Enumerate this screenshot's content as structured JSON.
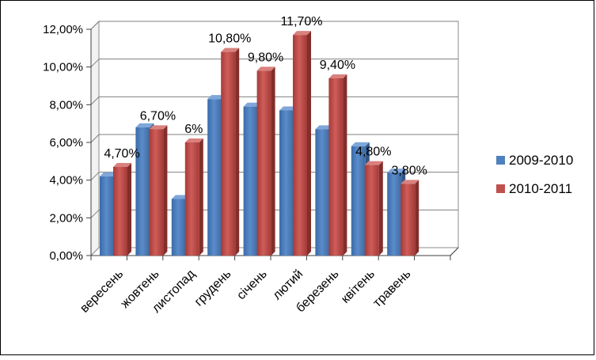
{
  "chart_data": {
    "type": "bar",
    "categories": [
      "вересень",
      "жовтень",
      "листопад",
      "грудень",
      "січень",
      "лютий",
      "березень",
      "квітень",
      "травень"
    ],
    "series": [
      {
        "name": "2009-2010",
        "values": [
          4.2,
          6.8,
          3.0,
          8.3,
          7.9,
          7.7,
          6.7,
          5.8,
          4.4
        ]
      },
      {
        "name": "2010-2011",
        "values": [
          4.7,
          6.7,
          6.0,
          10.8,
          9.8,
          11.7,
          9.4,
          4.8,
          3.8
        ]
      }
    ],
    "data_labels": [
      "4,70%",
      "6,70%",
      "6%",
      "10,80%",
      "9,80%",
      "11,70%",
      "9,40%",
      "4,80%",
      "3,80%"
    ],
    "y_ticks": [
      "0,00%",
      "2,00%",
      "4,00%",
      "6,00%",
      "8,00%",
      "10,00%",
      "12,00%"
    ],
    "ylim": [
      0,
      12
    ],
    "title": "",
    "xlabel": "",
    "ylabel": "",
    "grid": true,
    "legend_position": "right",
    "colors": {
      "2009-2010": "#4F81BD",
      "2010-2011": "#C0504D"
    },
    "slots": 10
  }
}
